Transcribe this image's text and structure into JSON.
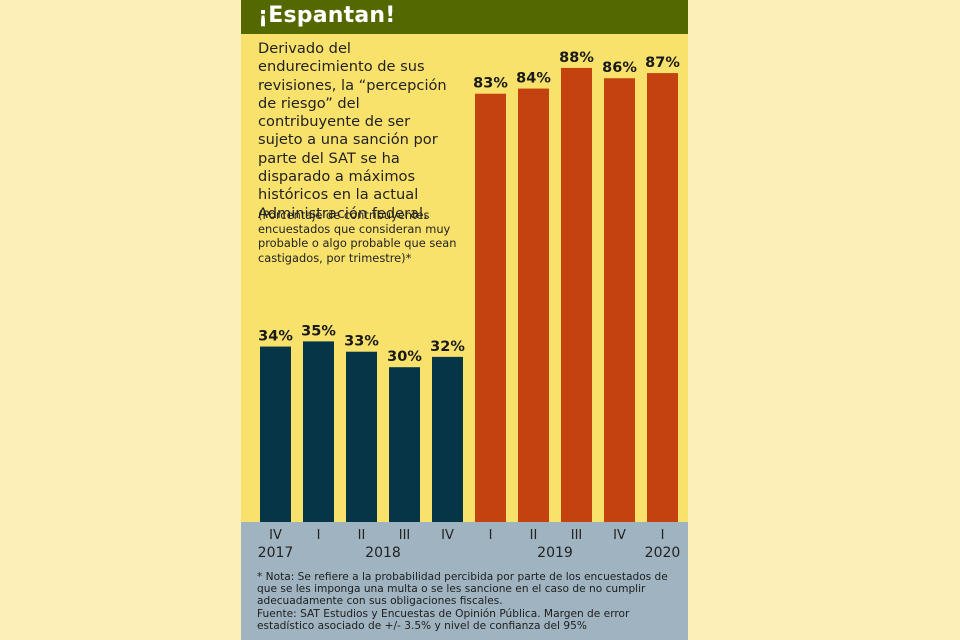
{
  "header": {
    "title": "¡Espantan!"
  },
  "lead_text": "Derivado del endurecimiento de sus revisiones, la “percepción de riesgo” del contribuyente de ser sujeto a una sanción por parte del SAT se ha disparado a máximos históricos en la actual Administración federal.",
  "subtitle": "(Porcentaje de contribuyentes encuestados que consideran muy probable o algo probable que sean castigados, por trimestre)*",
  "colors": {
    "header_bg": "#546800",
    "panel_bg": "#f9e26b",
    "bar_before": "#063548",
    "bar_after": "#c4420f",
    "axis_band": "#9fb4c0",
    "page_bg": "#fdefb8"
  },
  "chart_data": {
    "type": "bar",
    "title": "¡Espantan!",
    "xlabel": "",
    "ylabel": "Porcentaje de contribuyentes",
    "ylim": [
      0,
      100
    ],
    "grid": false,
    "categories": [
      "IV 2017",
      "I 2018",
      "II 2018",
      "III 2018",
      "IV 2018",
      "I 2019",
      "II 2019",
      "III 2019",
      "IV 2019",
      "I 2020"
    ],
    "quarter_labels": [
      "IV",
      "I",
      "II",
      "III",
      "IV",
      "I",
      "II",
      "III",
      "IV",
      "I"
    ],
    "year_labels": [
      {
        "label": "2017",
        "under_index": 0
      },
      {
        "label": "2018",
        "under_index": 2.5
      },
      {
        "label": "2019",
        "under_index": 6.5
      },
      {
        "label": "2020",
        "under_index": 9
      }
    ],
    "values": [
      34,
      35,
      33,
      30,
      32,
      83,
      84,
      88,
      86,
      87
    ],
    "data_labels": [
      "34%",
      "35%",
      "33%",
      "30%",
      "32%",
      "83%",
      "84%",
      "88%",
      "86%",
      "87%"
    ],
    "series_group": [
      "before",
      "before",
      "before",
      "before",
      "before",
      "after",
      "after",
      "after",
      "after",
      "after"
    ]
  },
  "notes": {
    "nota": "* Nota: Se refiere a la probabilidad percibida por parte de los encuestados de que se les imponga una multa o se les sancione en el caso de no cumplir adecuadamente con sus obligaciones fiscales.",
    "fuente": "Fuente: SAT Estudios y Encuestas de Opinión Pública. Margen de error estadístico asociado de +/- 3.5% y nivel de confianza del 95%"
  }
}
